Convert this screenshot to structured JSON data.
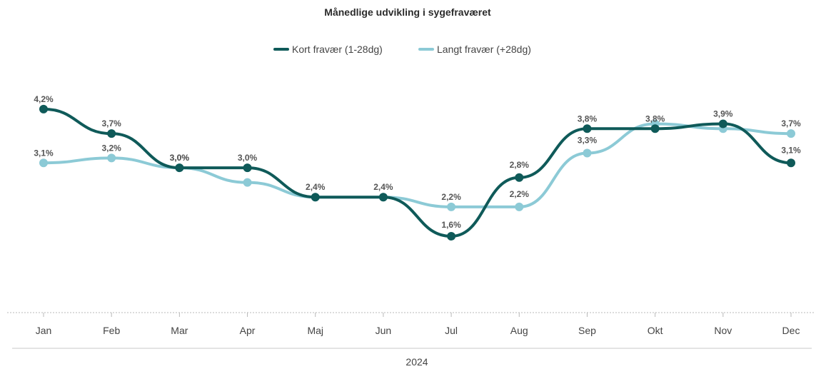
{
  "chart_data": {
    "type": "line",
    "title": "Månedlige udvikling i sygefraværet",
    "xlabel": "2024",
    "ylabel": "",
    "categories": [
      "Jan",
      "Feb",
      "Mar",
      "Apr",
      "Maj",
      "Jun",
      "Jul",
      "Aug",
      "Sep",
      "Okt",
      "Nov",
      "Dec"
    ],
    "series": [
      {
        "name": "Kort fravær (1-28dg)",
        "color": "#0f5a59",
        "values": [
          4.2,
          3.7,
          3.0,
          3.0,
          2.4,
          2.4,
          1.6,
          2.8,
          3.8,
          3.8,
          3.9,
          3.1
        ],
        "labels": [
          "4,2%",
          "3,7%",
          "3,0%",
          "3,0%",
          "2,4%",
          "2,4%",
          "1,6%",
          "2,8%",
          "3,8%",
          "3,8%",
          "3,9%",
          "3,1%"
        ]
      },
      {
        "name": "Langt fravær (+28dg)",
        "color": "#8ccad6",
        "values": [
          3.1,
          3.2,
          3.0,
          2.7,
          2.4,
          2.4,
          2.2,
          2.2,
          3.3,
          3.9,
          3.8,
          3.7
        ],
        "labels": [
          "3,1%",
          "3,2%",
          "3,0%",
          "",
          "",
          "",
          "2,2%",
          "2,2%",
          "3,3%",
          "",
          "",
          "3,7%"
        ]
      }
    ],
    "legend_position": "top-center",
    "grid": false
  }
}
